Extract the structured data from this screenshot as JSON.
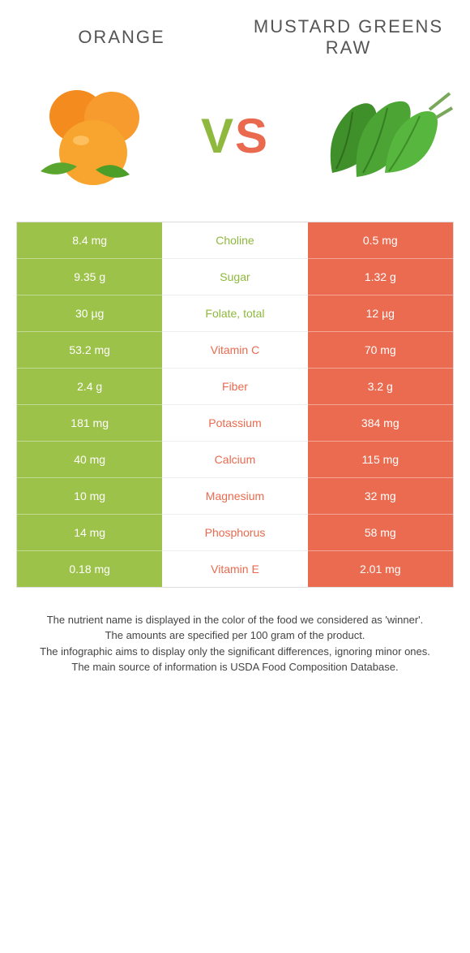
{
  "colors": {
    "left": "#9cc24a",
    "right": "#ea6b50",
    "left_text": "#8fb93e",
    "right_text": "#e96a4e",
    "bg": "#ffffff"
  },
  "fonts": {
    "title_size": 22,
    "cell_size": 14,
    "footnote_size": 13,
    "vs_size": 60
  },
  "header": {
    "left_title": "ORANGE",
    "right_title": "MUSTARD GREENS RAW"
  },
  "hero": {
    "left_icon": "orange-icon",
    "right_icon": "mustard-greens-icon",
    "vs_v": "V",
    "vs_s": "S"
  },
  "rows": [
    {
      "nutrient": "Choline",
      "left": "8.4 mg",
      "right": "0.5 mg",
      "winner": "left"
    },
    {
      "nutrient": "Sugar",
      "left": "9.35 g",
      "right": "1.32 g",
      "winner": "left"
    },
    {
      "nutrient": "Folate, total",
      "left": "30 µg",
      "right": "12 µg",
      "winner": "left"
    },
    {
      "nutrient": "Vitamin C",
      "left": "53.2 mg",
      "right": "70 mg",
      "winner": "right"
    },
    {
      "nutrient": "Fiber",
      "left": "2.4 g",
      "right": "3.2 g",
      "winner": "right"
    },
    {
      "nutrient": "Potassium",
      "left": "181 mg",
      "right": "384 mg",
      "winner": "right"
    },
    {
      "nutrient": "Calcium",
      "left": "40 mg",
      "right": "115 mg",
      "winner": "right"
    },
    {
      "nutrient": "Magnesium",
      "left": "10 mg",
      "right": "32 mg",
      "winner": "right"
    },
    {
      "nutrient": "Phosphorus",
      "left": "14 mg",
      "right": "58 mg",
      "winner": "right"
    },
    {
      "nutrient": "Vitamin E",
      "left": "0.18 mg",
      "right": "2.01 mg",
      "winner": "right"
    }
  ],
  "footnotes": {
    "line1": "The nutrient name is displayed in the color of the food we considered as 'winner'.",
    "line2": "The amounts are specified per 100 gram of the product.",
    "line3": "The infographic aims to display only the significant differences, ignoring minor ones.",
    "line4": "The main source of information is USDA Food Composition Database."
  }
}
